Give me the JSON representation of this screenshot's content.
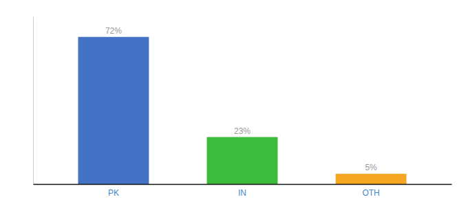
{
  "chart_data": {
    "type": "bar",
    "categories": [
      "PK",
      "IN",
      "OTH"
    ],
    "values": [
      72,
      23,
      5
    ],
    "value_labels": [
      "72%",
      "23%",
      "5%"
    ],
    "colors": [
      "#4472c4",
      "#3dbb3d",
      "#f5a623"
    ],
    "ylim": [
      0,
      82
    ],
    "data_labels": true,
    "tick_labels": "x"
  }
}
